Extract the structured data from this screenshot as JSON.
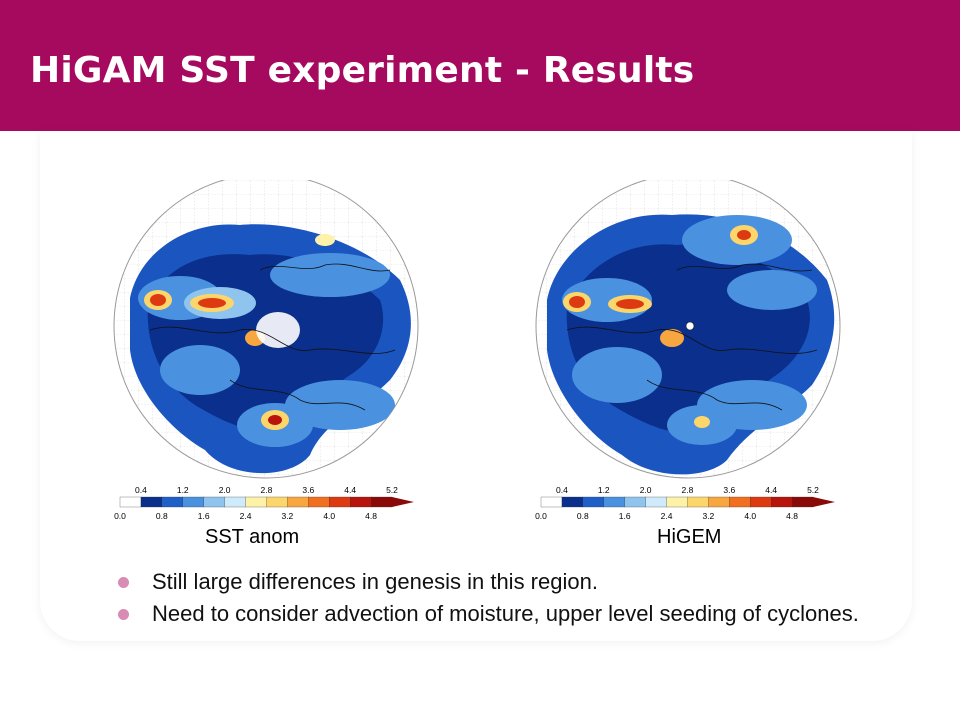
{
  "header": {
    "title": "HiGAM SST experiment - Results",
    "background_color": "#a50a5e"
  },
  "figures": [
    {
      "caption": "SST anom",
      "colorbar": {
        "upper_ticks": [
          "0.4",
          "1.2",
          "2.0",
          "2.8",
          "3.6",
          "4.4",
          "5.2"
        ],
        "lower_ticks": [
          "0.0",
          "0.8",
          "1.6",
          "2.4",
          "3.2",
          "4.0",
          "4.8"
        ],
        "colors": [
          "#ffffff",
          "#0a2f8c",
          "#1f5fc8",
          "#4a92e0",
          "#8fc4ee",
          "#cfeafa",
          "#fdf2a8",
          "#fdd66b",
          "#f8a640",
          "#f07020",
          "#dd3a12",
          "#b8140d",
          "#8a0a0a"
        ]
      }
    },
    {
      "caption": "HiGEM",
      "colorbar": {
        "upper_ticks": [
          "0.4",
          "1.2",
          "2.0",
          "2.8",
          "3.6",
          "4.4",
          "5.2"
        ],
        "lower_ticks": [
          "0.0",
          "0.8",
          "1.6",
          "2.4",
          "3.2",
          "4.0",
          "4.8"
        ],
        "colors": [
          "#ffffff",
          "#0a2f8c",
          "#1f5fc8",
          "#4a92e0",
          "#8fc4ee",
          "#cfeafa",
          "#fdf2a8",
          "#fdd66b",
          "#f8a640",
          "#f07020",
          "#dd3a12",
          "#b8140d",
          "#8a0a0a"
        ]
      }
    }
  ],
  "bullets": [
    "Still large differences in genesis in this region.",
    "Need to consider advection of moisture, upper level seeding of cyclones."
  ],
  "bullet_color": "#d98bb3"
}
